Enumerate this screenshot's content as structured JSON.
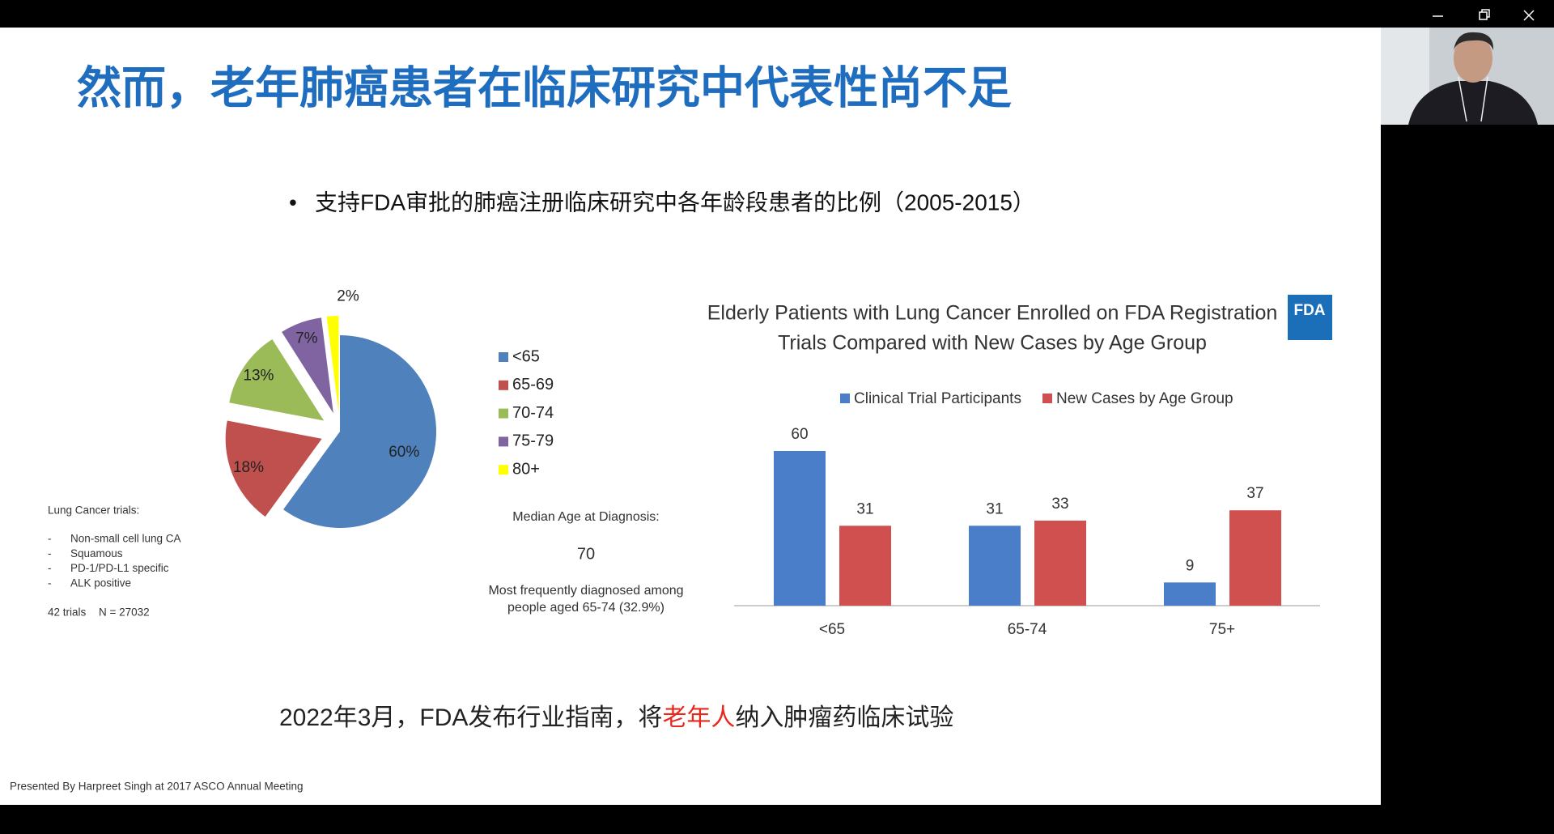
{
  "slide": {
    "title": "然而，老年肺癌患者在临床研究中代表性尚不足",
    "bullet": "支持FDA审批的肺癌注册临床研究中各年龄段患者的比例（2005-2015）",
    "trials_note": {
      "heading": "Lung Cancer trials:",
      "items": [
        "Non-small cell lung CA",
        "Squamous",
        "PD-1/PD-L1 specific",
        "ALK positive"
      ],
      "trials": "42 trials",
      "n": "N = 27032"
    },
    "median_note": {
      "heading": "Median Age at Diagnosis:",
      "value": 70,
      "lines": [
        "Most frequently diagnosed among",
        "people aged 65-74 (32.9%)"
      ]
    },
    "statement": [
      "2022年3月，FDA发布行业指南，将",
      "老年人",
      "纳入肿瘤药临床试验"
    ],
    "credit": "Presented By Harpreet Singh at 2017 ASCO Annual Meeting"
  },
  "chart_data": [
    {
      "type": "pie",
      "categories": [
        "<65",
        "65-69",
        "70-74",
        "75-79",
        "80+"
      ],
      "values": [
        60,
        18,
        13,
        7,
        2
      ],
      "value_labels": [
        "60%",
        "18%",
        "13%",
        "7%",
        "2%"
      ],
      "colors": [
        "#4f81bd",
        "#c0504d",
        "#9bbb59",
        "#8064a2",
        "#ffff00"
      ],
      "legend": "right"
    },
    {
      "type": "bar",
      "title": [
        "Elderly Patients with Lung Cancer Enrolled on FDA Registration",
        "Trials Compared with New Cases by Age Group"
      ],
      "logo": "FDA",
      "categories": [
        "<65",
        "65-74",
        "75+"
      ],
      "series": [
        {
          "name": "Clinical Trial Participants",
          "color": "#4a7ec8",
          "values": [
            60,
            31,
            9
          ]
        },
        {
          "name": "New Cases by Age Group",
          "color": "#cf504e",
          "values": [
            31,
            33,
            37
          ]
        }
      ],
      "legend": "top"
    }
  ]
}
